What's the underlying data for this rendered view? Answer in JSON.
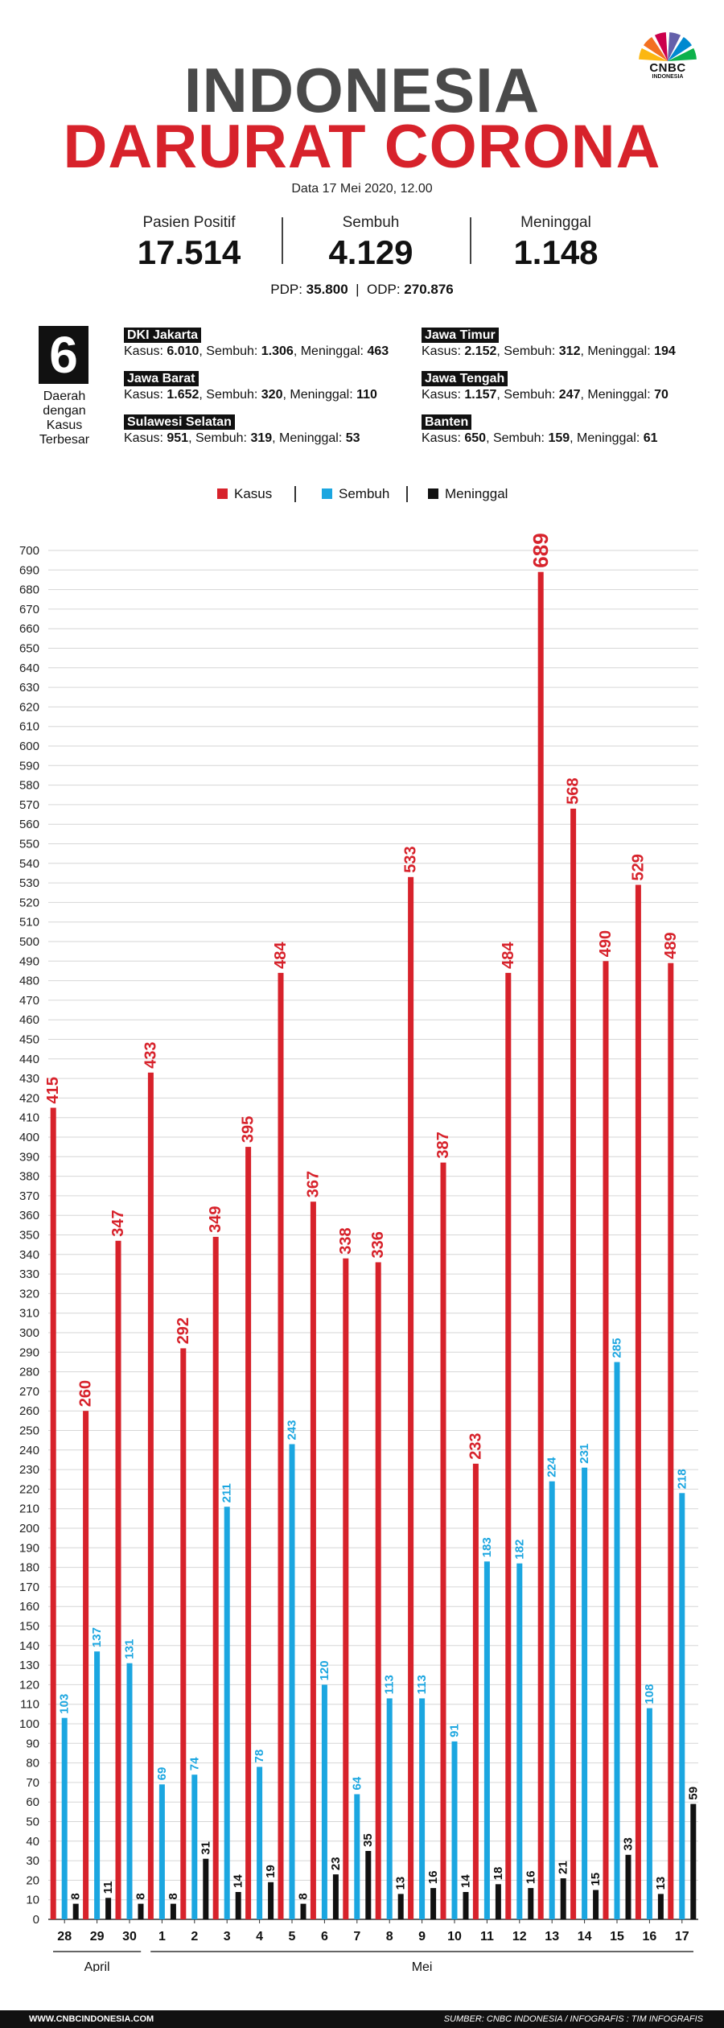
{
  "brand": {
    "wordmark": "CNBC",
    "sub": "INDONESIA",
    "colors": [
      "#fcb711",
      "#f37021",
      "#cc004c",
      "#6460aa",
      "#0089d0",
      "#0db14b"
    ]
  },
  "header": {
    "title_line1": "INDONESIA",
    "title_line2": "DARURAT CORONA",
    "date": "Data 17 Mei 2020, 12.00"
  },
  "stats": [
    {
      "label": "Pasien Positif",
      "value": "17.514"
    },
    {
      "label": "Sembuh",
      "value": "4.129"
    },
    {
      "label": "Meninggal",
      "value": "1.148"
    }
  ],
  "pdp_odp": {
    "pdp_label": "PDP:",
    "pdp_value": "35.800",
    "separator": "|",
    "odp_label": "ODP:",
    "odp_value": "270.876"
  },
  "regions": {
    "count": "6",
    "caption_lines": [
      "Daerah",
      "dengan",
      "Kasus",
      "Terbesar"
    ],
    "kasus_label": "Kasus:",
    "sembuh_label": "Sembuh:",
    "meninggal_label": "Meninggal:",
    "items": [
      {
        "name": "DKI Jakarta",
        "kasus": "6.010",
        "sembuh": "1.306",
        "meninggal": "463"
      },
      {
        "name": "Jawa Barat",
        "kasus": "1.652",
        "sembuh": "320",
        "meninggal": "110"
      },
      {
        "name": "Sulawesi Selatan",
        "kasus": "951",
        "sembuh": "319",
        "meninggal": "53"
      },
      {
        "name": "Jawa Timur",
        "kasus": "2.152",
        "sembuh": "312",
        "meninggal": "194"
      },
      {
        "name": "Jawa Tengah",
        "kasus": "1.157",
        "sembuh": "247",
        "meninggal": "70"
      },
      {
        "name": "Banten",
        "kasus": "650",
        "sembuh": "159",
        "meninggal": "61"
      }
    ]
  },
  "legend": {
    "kasus": "Kasus",
    "sembuh": "Sembuh",
    "meninggal": "Meninggal",
    "separator": "|"
  },
  "chart_data": {
    "type": "bar",
    "title": "",
    "xlabel": "",
    "ylabel": "",
    "ylim": [
      0,
      700
    ],
    "ytick_step": 10,
    "grid": true,
    "legend_position": "top-center",
    "categories": [
      "28",
      "29",
      "30",
      "1",
      "2",
      "3",
      "4",
      "5",
      "6",
      "7",
      "8",
      "9",
      "10",
      "11",
      "12",
      "13",
      "14",
      "15",
      "16",
      "17"
    ],
    "month_groups": [
      {
        "label": "April",
        "categories": [
          "28",
          "29",
          "30"
        ]
      },
      {
        "label": "Mei",
        "categories": [
          "1",
          "2",
          "3",
          "4",
          "5",
          "6",
          "7",
          "8",
          "9",
          "10",
          "11",
          "12",
          "13",
          "14",
          "15",
          "16",
          "17"
        ]
      }
    ],
    "series": [
      {
        "name": "Kasus",
        "color": "#d7222b",
        "values": [
          415,
          260,
          347,
          433,
          292,
          349,
          395,
          484,
          367,
          338,
          336,
          533,
          387,
          233,
          484,
          689,
          568,
          490,
          529,
          489
        ]
      },
      {
        "name": "Sembuh",
        "color": "#1ba6e0",
        "values": [
          103,
          137,
          131,
          69,
          74,
          211,
          78,
          243,
          120,
          64,
          113,
          113,
          91,
          183,
          182,
          224,
          231,
          285,
          108,
          218
        ]
      },
      {
        "name": "Meninggal",
        "color": "#111111",
        "values": [
          8,
          11,
          8,
          8,
          31,
          14,
          19,
          8,
          23,
          35,
          13,
          16,
          14,
          18,
          16,
          21,
          15,
          33,
          13,
          59
        ]
      }
    ]
  },
  "footer": {
    "website": "WWW.CNBCINDONESIA.COM",
    "source": "SUMBER: CNBC INDONESIA / INFOGRAFIS : TIM INFOGRAFIS"
  }
}
